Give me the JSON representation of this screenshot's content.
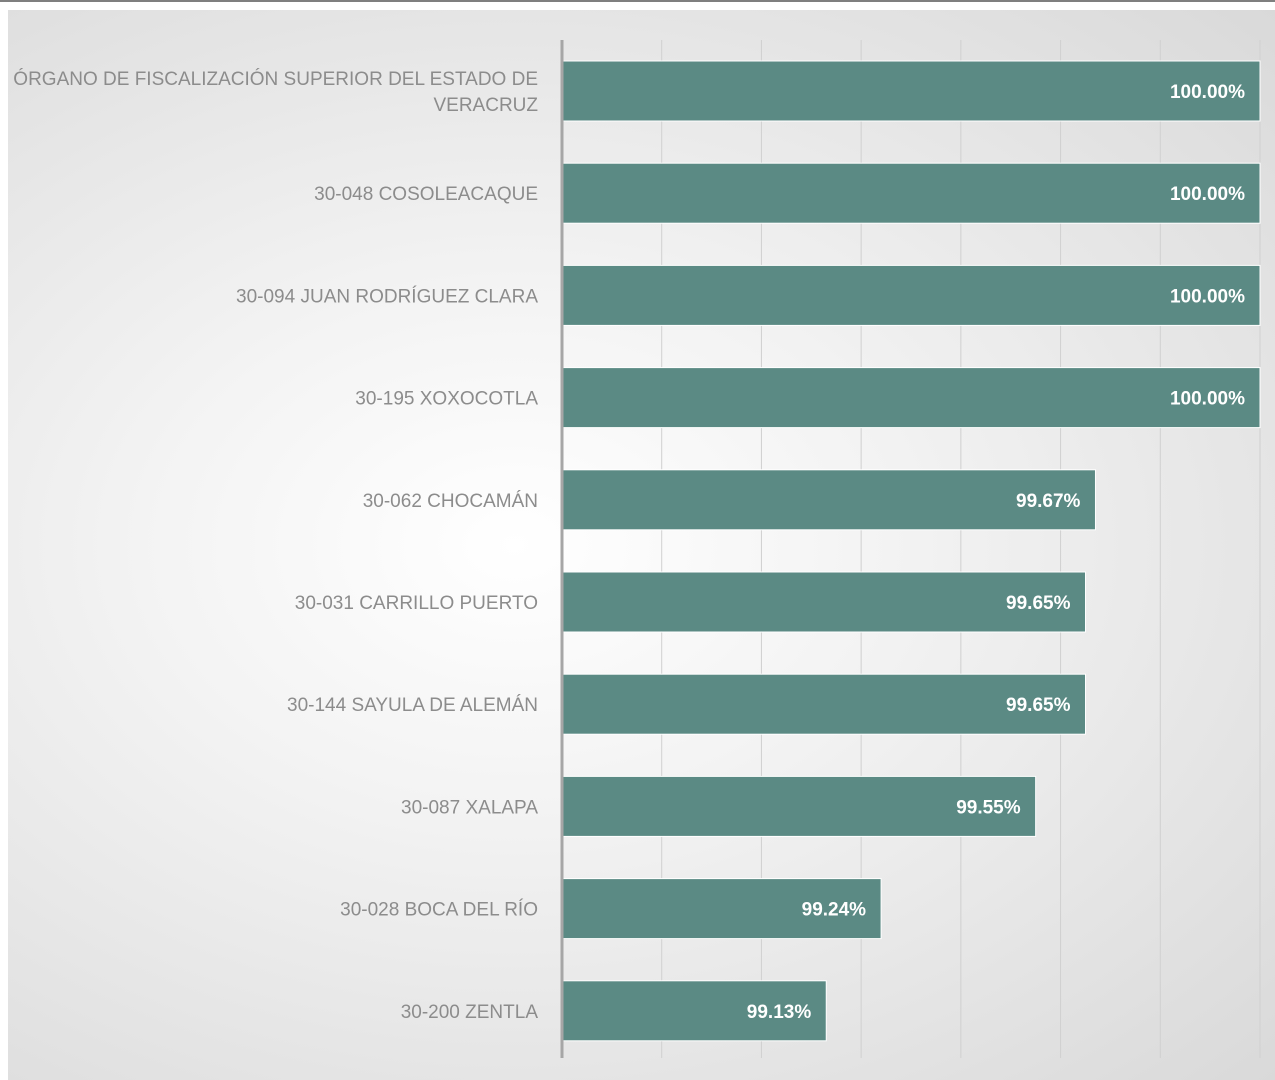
{
  "chart_data": {
    "type": "bar",
    "orientation": "horizontal",
    "categories": [
      "ÓRGANO DE FISCALIZACIÓN SUPERIOR DEL ESTADO DE VERACRUZ",
      "30-048 COSOLEACAQUE",
      "30-094 JUAN RODRÍGUEZ CLARA",
      "30-195 XOXOCOTLA",
      "30-062 CHOCAMÁN",
      "30-031 CARRILLO PUERTO",
      "30-144 SAYULA DE ALEMÁN",
      "30-087 XALAPA",
      "30-028 BOCA DEL RÍO",
      "30-200 ZENTLA"
    ],
    "category_lines": [
      [
        "ÓRGANO DE FISCALIZACIÓN SUPERIOR DEL ESTADO DE",
        "VERACRUZ"
      ],
      [
        "30-048 COSOLEACAQUE"
      ],
      [
        "30-094 JUAN RODRÍGUEZ CLARA"
      ],
      [
        "30-195 XOXOCOTLA"
      ],
      [
        "30-062 CHOCAMÁN"
      ],
      [
        "30-031 CARRILLO PUERTO"
      ],
      [
        "30-144 SAYULA DE ALEMÁN"
      ],
      [
        "30-087 XALAPA"
      ],
      [
        "30-028 BOCA DEL RÍO"
      ],
      [
        "30-200 ZENTLA"
      ]
    ],
    "values": [
      100.0,
      100.0,
      100.0,
      100.0,
      99.67,
      99.65,
      99.65,
      99.55,
      99.24,
      99.13
    ],
    "value_labels": [
      "100.00%",
      "100.00%",
      "100.00%",
      "100.00%",
      "99.67%",
      "99.65%",
      "99.65%",
      "99.55%",
      "99.24%",
      "99.13%"
    ],
    "xlim": [
      98.6,
      100.0
    ],
    "x_grid_step": 0.2,
    "grid": true,
    "x_tick_labels_visible": false,
    "title": "",
    "xlabel": "",
    "ylabel": "",
    "colors": {
      "bar": "#5b8a84",
      "grid": "#d0d0d0",
      "axis": "#a6a6a6",
      "category_text": "#8c8c8c",
      "value_text": "#ffffff"
    }
  }
}
